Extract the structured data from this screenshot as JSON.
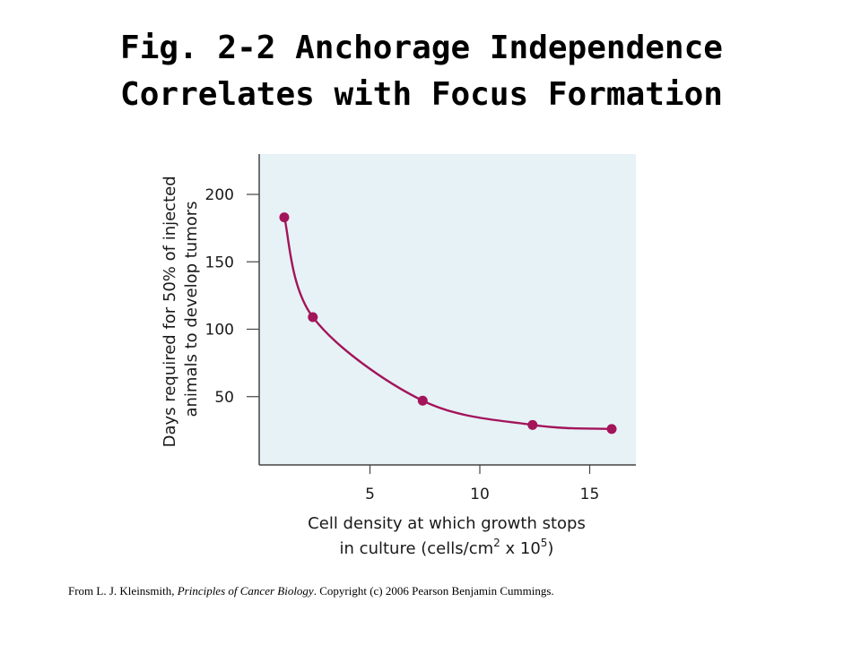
{
  "title": {
    "line1": "Fig. 2-2 Anchorage Independence",
    "line2": "Correlates with Focus Formation"
  },
  "citation": {
    "prefix": "From L. J. Kleinsmith, ",
    "book": "Principles of Cancer Biology",
    "suffix": ". Copyright (c) 2006 Pearson Benjamin Cummings."
  },
  "colors": {
    "plot_background": "#e6f2f6",
    "series": "#a3145a",
    "axis": "#444444"
  },
  "chart_data": {
    "type": "scatter",
    "curve": "smooth fitted curve through points",
    "xlabel_line1": "Cell density at which growth stops",
    "xlabel_line2_prefix": "in culture (cells/cm",
    "xlabel_sup1": "2",
    "xlabel_line2_mid": " x 10",
    "xlabel_sup2": "5",
    "xlabel_line2_suffix": ")",
    "ylabel_line1": "Days required for 50% of injected",
    "ylabel_line2": "animals to develop tumors",
    "xlim": [
      0,
      17
    ],
    "ylim": [
      0,
      230
    ],
    "x_ticks": [
      5,
      10,
      15
    ],
    "y_ticks": [
      50,
      100,
      150,
      200
    ],
    "grid": false,
    "points": [
      {
        "x": 1.1,
        "y": 183
      },
      {
        "x": 2.4,
        "y": 109
      },
      {
        "x": 7.4,
        "y": 47
      },
      {
        "x": 12.4,
        "y": 29
      },
      {
        "x": 16.0,
        "y": 26
      }
    ]
  }
}
